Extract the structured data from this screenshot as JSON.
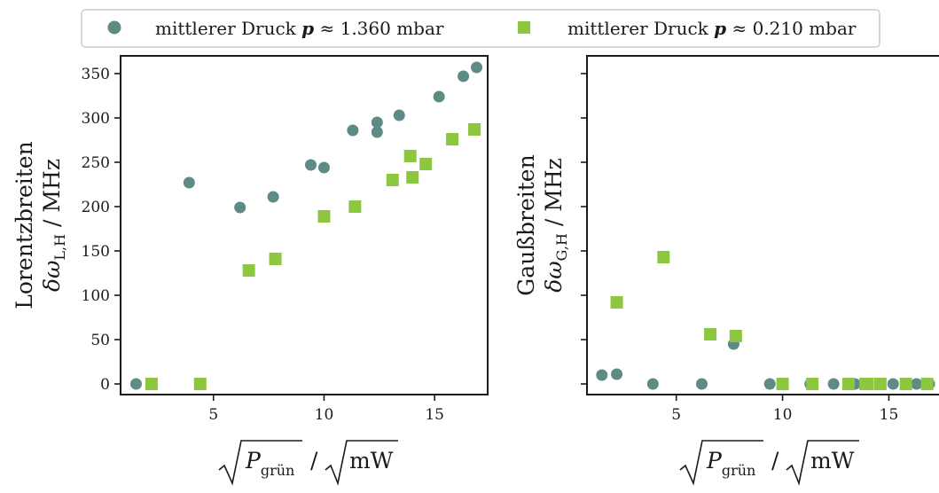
{
  "legend": {
    "entries": [
      {
        "label_main": "mittlerer Druck ",
        "label_var": "p",
        "label_rest": " ≈ 1.360 mbar",
        "color": "#5e8b86",
        "marker": "circle"
      },
      {
        "label_main": "mittlerer Druck ",
        "label_var": "p",
        "label_rest": " ≈ 0.210 mbar",
        "color": "#8dc63f",
        "marker": "square"
      }
    ]
  },
  "chart_data": [
    {
      "type": "scatter",
      "title": "",
      "ylabel_line1": "Lorentzbreiten",
      "ylabel_line2_symbol": "δω",
      "ylabel_line2_sub": "L,H",
      "ylabel_line2_unit": " / MHz",
      "xlabel_symbol": "P",
      "xlabel_sub": "grün",
      "xlabel_unit": "mW",
      "xlim": [
        0.8,
        17.4
      ],
      "ylim": [
        -12,
        370
      ],
      "xticks": [
        5,
        10,
        15
      ],
      "yticks": [
        0,
        50,
        100,
        150,
        200,
        250,
        300,
        350
      ],
      "grid": false,
      "series": [
        {
          "name": "mittlerer Druck p ≈ 1.360 mbar",
          "color": "#5e8b86",
          "marker": "circle",
          "x": [
            1.5,
            3.9,
            6.2,
            7.7,
            9.4,
            10.0,
            11.3,
            12.4,
            12.4,
            13.4,
            15.2,
            16.3,
            16.9
          ],
          "y": [
            0,
            227,
            199,
            211,
            247,
            244,
            286,
            295,
            284,
            303,
            324,
            347,
            357
          ]
        },
        {
          "name": "mittlerer Druck p ≈ 0.210 mbar",
          "color": "#8dc63f",
          "marker": "square",
          "x": [
            2.2,
            4.4,
            6.6,
            7.8,
            10.0,
            11.4,
            13.1,
            13.9,
            14.0,
            14.6,
            15.8,
            16.8
          ],
          "y": [
            0,
            0,
            128,
            141,
            189,
            200,
            230,
            257,
            233,
            248,
            276,
            287
          ]
        }
      ]
    },
    {
      "type": "scatter",
      "title": "",
      "ylabel_line1": "Gaußbreiten",
      "ylabel_line2_symbol": "δω",
      "ylabel_line2_sub": "G,H",
      "ylabel_line2_unit": " / MHz",
      "xlabel_symbol": "P",
      "xlabel_sub": "grün",
      "xlabel_unit": "mW",
      "xlim": [
        0.8,
        17.4
      ],
      "ylim": [
        -12,
        370
      ],
      "xticks": [
        5,
        10,
        15
      ],
      "yticks": [
        0,
        50,
        100,
        150,
        200,
        250,
        300,
        350
      ],
      "show_ytick_labels": false,
      "grid": false,
      "series": [
        {
          "name": "mittlerer Druck p ≈ 1.360 mbar",
          "color": "#5e8b86",
          "marker": "circle",
          "x": [
            1.5,
            2.2,
            3.9,
            6.2,
            7.7,
            9.4,
            10.0,
            11.3,
            12.4,
            13.1,
            13.4,
            14.0,
            15.2,
            16.3,
            16.9
          ],
          "y": [
            10,
            11,
            0,
            0,
            45,
            0,
            0,
            0,
            0,
            0,
            0,
            0,
            0,
            0,
            0
          ]
        },
        {
          "name": "mittlerer Druck p ≈ 0.210 mbar",
          "color": "#8dc63f",
          "marker": "square",
          "x": [
            2.2,
            4.4,
            6.6,
            7.8,
            10.0,
            11.4,
            13.1,
            13.9,
            14.0,
            14.6,
            15.8,
            16.8
          ],
          "y": [
            92,
            143,
            56,
            54,
            0,
            0,
            0,
            0,
            0,
            0,
            0,
            0
          ]
        }
      ]
    }
  ]
}
